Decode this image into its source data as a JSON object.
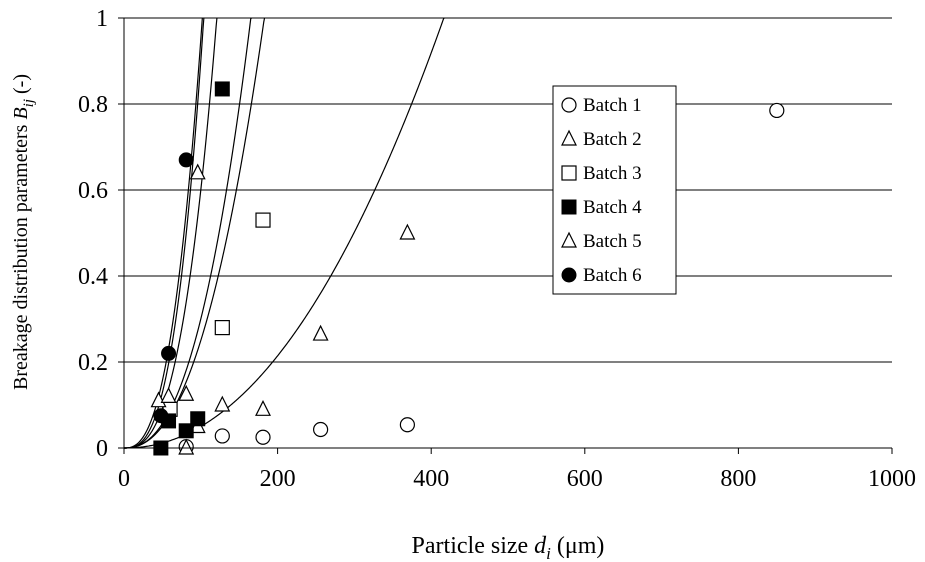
{
  "chart_data": {
    "type": "scatter",
    "xlabel": "Particle size d i  (μm)",
    "xlabel_parts": {
      "prefix": "Particle size ",
      "var": "d",
      "sub": "i",
      "unit": "(μm)"
    },
    "ylabel": "Breakage distribution parameters  Bij (-)",
    "ylabel_parts": {
      "prefix": "Breakage distribution parameters  ",
      "var": "B",
      "sub": "ij",
      "unit": " (-)"
    },
    "xlim": [
      0,
      1000
    ],
    "ylim": [
      0,
      1
    ],
    "x_ticks": [
      "0",
      "200",
      "400",
      "600",
      "800",
      "1000"
    ],
    "y_ticks": [
      "0",
      "0.2",
      "0.4",
      "0.6",
      "0.8",
      "1"
    ],
    "grid": "horizontal",
    "legend_position": "upper-right",
    "series": [
      {
        "name": "Batch 1",
        "marker": "open-circle",
        "x": [
          81,
          128,
          181,
          256,
          369,
          850
        ],
        "y": [
          0.003,
          0.028,
          0.025,
          0.043,
          0.054,
          0.785
        ]
      },
      {
        "name": "Batch 2",
        "marker": "open-triangle",
        "x": [
          81,
          96
        ],
        "y": [
          0.0,
          0.05
        ]
      },
      {
        "name": "Batch 3",
        "marker": "open-square",
        "x": [
          60,
          128,
          181
        ],
        "y": [
          0.09,
          0.28,
          0.53
        ]
      },
      {
        "name": "Batch 4",
        "marker": "filled-square",
        "x": [
          48,
          58,
          81,
          96,
          128
        ],
        "y": [
          0.0,
          0.063,
          0.04,
          0.068,
          0.835
        ]
      },
      {
        "name": "Batch 5",
        "marker": "open-triangle",
        "x": [
          45,
          58,
          81,
          96,
          128,
          181,
          256,
          369
        ],
        "y": [
          0.11,
          0.12,
          0.125,
          0.64,
          0.1,
          0.09,
          0.265,
          0.5
        ]
      },
      {
        "name": "Batch 6",
        "marker": "filled-circle",
        "x": [
          48,
          58,
          81
        ],
        "y": [
          0.075,
          0.22,
          0.67
        ]
      }
    ],
    "fitted_curves": [
      {
        "k": 0.9,
        "n": 2.8
      },
      {
        "k": 0.6,
        "n": 2.7
      },
      {
        "k": 0.95,
        "n": 2.6
      },
      {
        "k": 0.3,
        "n": 2.4
      },
      {
        "k": 0.25,
        "n": 2.3
      },
      {
        "k": 0.05,
        "n": 2.1
      }
    ]
  }
}
